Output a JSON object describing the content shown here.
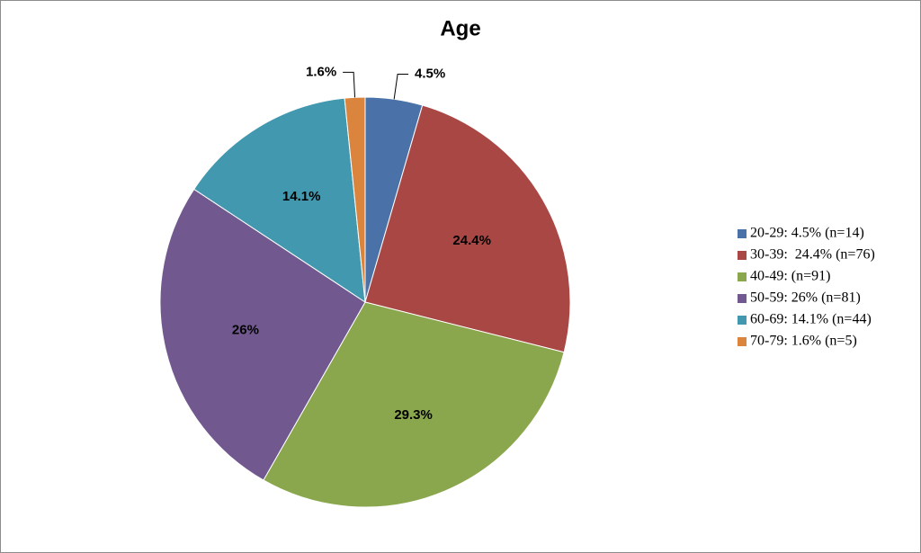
{
  "chart_data": {
    "type": "pie",
    "title": "Age",
    "categories": [
      "20-29: 4.5% (n=14)",
      "30-39:  24.4% (n=76)",
      "40-49: (n=91)",
      "50-59: 26% (n=81)",
      "60-69: 14.1% (n=44)",
      "70-79: 1.6% (n=5)"
    ],
    "values": [
      4.5,
      24.4,
      29.3,
      26,
      14.1,
      1.6
    ],
    "value_labels": [
      "4.5%",
      "24.4%",
      "29.3%",
      "26%",
      "14.1%",
      "1.6%"
    ],
    "colors": [
      "#4a72a8",
      "#a94744",
      "#8aa74e",
      "#71588f",
      "#4298ae",
      "#db843d"
    ],
    "legend": "right"
  }
}
